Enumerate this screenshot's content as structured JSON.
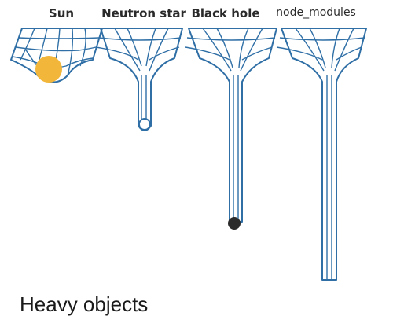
{
  "labels": {
    "sun": "Sun",
    "neutron_star": "Neutron star",
    "black_hole": "Black hole",
    "node_modules": "node_modules"
  },
  "caption": "Heavy objects",
  "colors": {
    "grid_line": "#2f6fa6",
    "sun": "#f2b63a",
    "black_hole": "#2b2b2b",
    "neutron_star": "#ffffff"
  }
}
